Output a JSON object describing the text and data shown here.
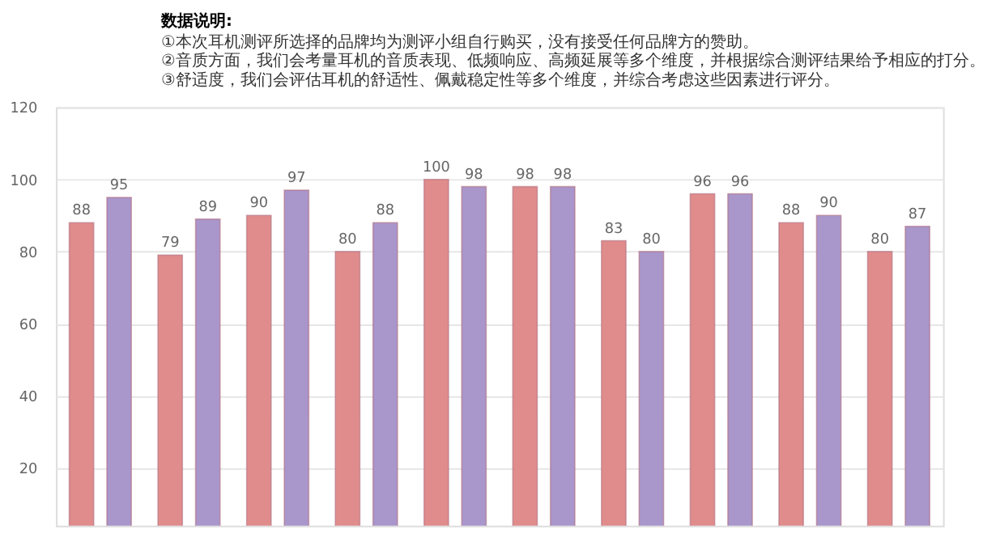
{
  "chart_data": {
    "type": "bar",
    "title": "数据说明:",
    "annotations": [
      "①本次耳机测评所选择的品牌均为测评小组自行购买，没有接受任何品牌方的赞助。",
      "②音质方面，我们会考量耳机的音质表现、低频响应、高频延展等多个维度，并根据综合测评结果给予相应的打分。",
      "③舒适度，我们会评估耳机的舒适性、佩戴稳定性等多个维度，并综合考虑这些因素进行评分。"
    ],
    "categories": [
      null,
      null,
      null,
      null,
      null,
      null,
      null,
      null,
      null,
      null
    ],
    "series": [
      {
        "color": "#e08c8c",
        "values": [
          88,
          79,
          90,
          80,
          100,
          98,
          83,
          96,
          88,
          80
        ]
      },
      {
        "color": "#a996cb",
        "values": [
          95,
          89,
          97,
          88,
          98,
          98,
          80,
          96,
          90,
          87
        ]
      }
    ],
    "ylim": [
      4,
      120
    ],
    "yticks": [
      20,
      40,
      60,
      80,
      100,
      120
    ],
    "grid": "y",
    "legend": false,
    "data_labels": true,
    "tick_labels": "y"
  }
}
